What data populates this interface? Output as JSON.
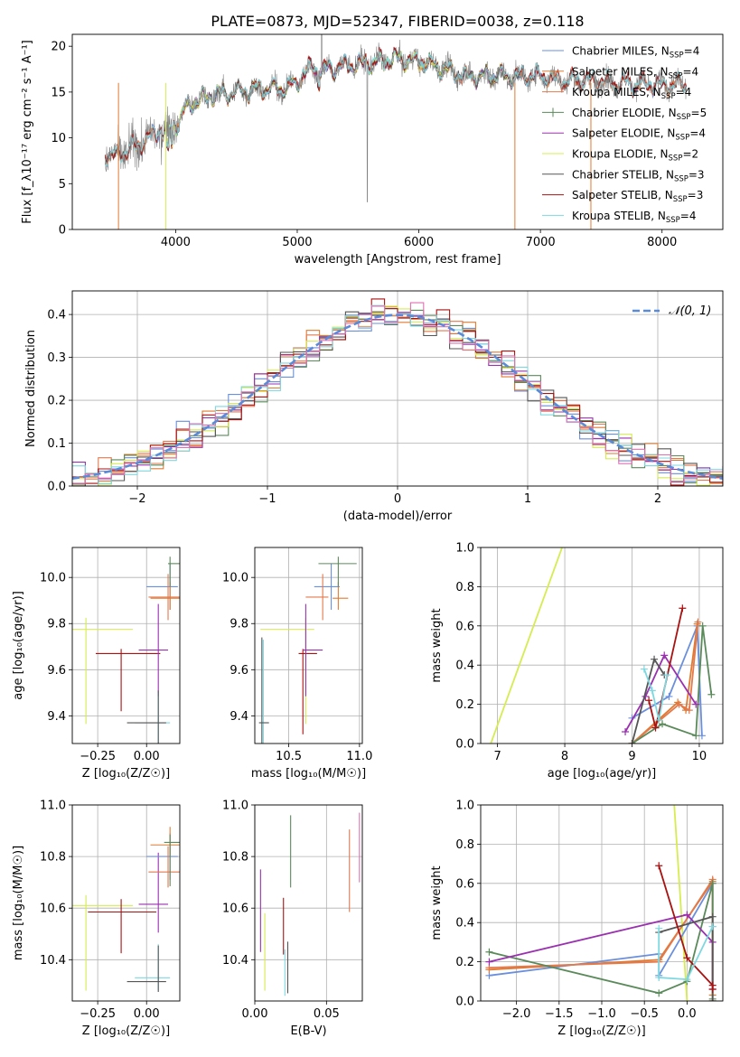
{
  "title": "PLATE=0873, MJD=52347, FIBERID=0038, z=0.118",
  "colors": {
    "chabrier_miles": "#6a8fdc",
    "salpeter_miles": "#e07a30",
    "kroupa_miles": "#e3794c",
    "chabrier_elodie": "#5a8a5a",
    "salpeter_elodie": "#9a30b0",
    "kroupa_elodie": "#d6ec50",
    "chabrier_stelib": "#555555",
    "salpeter_stelib": "#aa1111",
    "kroupa_stelib": "#7fd8e0",
    "pink": "#e070b0",
    "data_gray": "#808080"
  },
  "chart_data": [
    {
      "id": "spectrum",
      "type": "line",
      "xlabel": "wavelength [Angstrom, rest frame]",
      "ylabel": "Flux [f_λ10⁻¹⁷ erg cm⁻² s⁻¹ A⁻¹]",
      "xlim": [
        3150,
        8500
      ],
      "ylim": [
        0,
        21.3
      ],
      "xticks": [
        "4000",
        "5000",
        "6000",
        "7000",
        "8000"
      ],
      "yticks": [
        "0",
        "5",
        "10",
        "15",
        "20"
      ],
      "legend_position": "top-right",
      "legend": [
        "Chabrier MILES, N_SSP=4",
        "Salpeter MILES, N_SSP=4",
        "Kroupa MILES, N_SSP=4",
        "Chabrier ELODIE, N_SSP=5",
        "Salpeter ELODIE, N_SSP=4",
        "Kroupa ELODIE, N_SSP=2",
        "Chabrier STELIB, N_SSP=3",
        "Salpeter STELIB, N_SSP=3",
        "Kroupa STELIB, N_SSP=4"
      ],
      "continuum_wavelength": [
        3420,
        3500,
        3600,
        3700,
        3800,
        3900,
        4000,
        4100,
        4200,
        4300,
        4500,
        4700,
        4900,
        5000,
        5100,
        5200,
        5400,
        5600,
        5800,
        6000,
        6200,
        6400,
        6600,
        6800,
        7000,
        7200,
        7400,
        7600,
        7800,
        8000,
        8200
      ],
      "continuum_flux": [
        8.2,
        7.9,
        8.6,
        9.3,
        10.2,
        10.8,
        11.3,
        13.5,
        14.2,
        14.6,
        15.0,
        15.4,
        15.4,
        16.0,
        17.6,
        17.3,
        17.9,
        18.2,
        18.6,
        18.4,
        17.6,
        16.7,
        16.8,
        16.7,
        16.8,
        16.2,
        16.3,
        16.0,
        15.9,
        15.8,
        15.9
      ]
    },
    {
      "id": "residuals",
      "type": "histogram",
      "xlabel": "(data-model)/error",
      "ylabel": "Normed distribution",
      "xlim": [
        -2.5,
        2.5
      ],
      "ylim": [
        0,
        0.455
      ],
      "xticks": [
        "−2",
        "−1",
        "0",
        "1",
        "2"
      ],
      "yticks": [
        "0.0",
        "0.1",
        "0.2",
        "0.3",
        "0.4"
      ],
      "grid": true,
      "legend": [
        "𝒩(0, 1)"
      ],
      "legend_position": "top-right",
      "bin_width": 0.1
    },
    {
      "id": "age_vs_Z",
      "type": "errorbar",
      "xlabel": "Z [log₁₀(Z/Z☉)]",
      "ylabel": "age  [log₁₀(age/yr)]",
      "xlim": [
        -0.38,
        0.17
      ],
      "ylim": [
        9.28,
        10.13
      ],
      "xticks": [
        "−0.25",
        "0.00"
      ],
      "yticks": [
        "9.4",
        "9.6",
        "9.8",
        "10.0"
      ],
      "grid": true,
      "points": [
        {
          "series": "kroupa_elodie",
          "x": -0.31,
          "y": 9.775,
          "xerr": [
            0.25,
            0.24
          ],
          "yerr": [
            0.41,
            0.05
          ]
        },
        {
          "series": "salpeter_stelib",
          "x": -0.13,
          "y": 9.67,
          "xerr": [
            0.13,
            0.2
          ],
          "yerr": [
            0.25,
            0.02
          ]
        },
        {
          "series": "salpeter_elodie",
          "x": 0.06,
          "y": 9.685,
          "xerr": [
            0.1,
            0.05
          ],
          "yerr": [
            0.2,
            0.2
          ]
        },
        {
          "series": "kroupa_stelib",
          "x": 0.06,
          "y": 9.37,
          "xerr": [
            0.12,
            0.06
          ],
          "yerr": [
            0.1,
            0.13
          ]
        },
        {
          "series": "chabrier_stelib",
          "x": 0.06,
          "y": 9.37,
          "xerr": [
            0.16,
            0.04
          ],
          "yerr": [
            0.09,
            0.14
          ]
        },
        {
          "series": "chabrier_miles",
          "x": 0.12,
          "y": 9.96,
          "xerr": [
            0.12,
            0.04
          ],
          "yerr": [
            0.1,
            0.1
          ]
        },
        {
          "series": "kroupa_miles",
          "x": 0.11,
          "y": 9.915,
          "xerr": [
            0.1,
            0.06
          ],
          "yerr": [
            0.1,
            0.1
          ]
        },
        {
          "series": "salpeter_miles",
          "x": 0.12,
          "y": 9.91,
          "xerr": [
            0.1,
            0.06
          ],
          "yerr": [
            0.05,
            0.07
          ]
        },
        {
          "series": "chabrier_elodie",
          "x": 0.12,
          "y": 10.06,
          "xerr": [
            0.01,
            0.05
          ],
          "yerr": [
            0.1,
            0.03
          ]
        }
      ]
    },
    {
      "id": "age_vs_mass",
      "type": "errorbar",
      "xlabel": "mass [log₁₀(M/M☉)]",
      "ylabel": "",
      "xlim": [
        10.26,
        11.02
      ],
      "ylim": [
        9.28,
        10.13
      ],
      "xticks": [
        "10.5",
        "11.0"
      ],
      "yticks": [
        "9.4",
        "9.6",
        "9.8",
        "10.0"
      ],
      "grid": true,
      "points": [
        {
          "series": "kroupa_elodie",
          "x": 10.62,
          "y": 9.775,
          "xerr": [
            0.32,
            0.06
          ],
          "yerr": [
            0.41,
            0.05
          ]
        },
        {
          "series": "salpeter_stelib",
          "x": 10.6,
          "y": 9.67,
          "xerr": [
            0.03,
            0.1
          ],
          "yerr": [
            0.35,
            0.02
          ]
        },
        {
          "series": "salpeter_elodie",
          "x": 10.62,
          "y": 9.685,
          "xerr": [
            0.02,
            0.12
          ],
          "yerr": [
            0.2,
            0.2
          ]
        },
        {
          "series": "kroupa_stelib",
          "x": 10.32,
          "y": 9.37,
          "xerr": [
            0.03,
            0.04
          ],
          "yerr": [
            0.1,
            0.36
          ]
        },
        {
          "series": "chabrier_stelib",
          "x": 10.31,
          "y": 9.37,
          "xerr": [
            0.02,
            0.05
          ],
          "yerr": [
            0.09,
            0.37
          ]
        },
        {
          "series": "chabrier_miles",
          "x": 10.8,
          "y": 9.96,
          "xerr": [
            0.12,
            0.06
          ],
          "yerr": [
            0.1,
            0.1
          ]
        },
        {
          "series": "kroupa_miles",
          "x": 10.74,
          "y": 9.915,
          "xerr": [
            0.12,
            0.04
          ],
          "yerr": [
            0.1,
            0.1
          ]
        },
        {
          "series": "salpeter_miles",
          "x": 10.85,
          "y": 9.91,
          "xerr": [
            0.04,
            0.07
          ],
          "yerr": [
            0.05,
            0.07
          ]
        },
        {
          "series": "chabrier_elodie",
          "x": 10.85,
          "y": 10.06,
          "xerr": [
            0.14,
            0.13
          ],
          "yerr": [
            0.1,
            0.03
          ]
        }
      ]
    },
    {
      "id": "weight_vs_age",
      "type": "line",
      "xlabel": "age  [log₁₀(age/yr)]",
      "ylabel": "mass weight",
      "xlim": [
        6.75,
        10.35
      ],
      "ylim": [
        0,
        1.0
      ],
      "xticks": [
        "7",
        "8",
        "9",
        "10"
      ],
      "yticks": [
        "0.0",
        "0.2",
        "0.4",
        "0.6",
        "0.8",
        "1.0"
      ],
      "grid": true,
      "series": [
        {
          "name": "Kroupa ELODIE",
          "color": "kroupa_elodie",
          "x": [
            6.9,
            7.96
          ],
          "y": [
            0.0,
            1.0
          ]
        },
        {
          "name": "Chabrier MILES",
          "color": "chabrier_miles",
          "x": [
            9.0,
            9.55,
            9.97,
            10.04
          ],
          "y": [
            0.13,
            0.24,
            0.6,
            0.04
          ]
        },
        {
          "name": "Salpeter MILES",
          "color": "salpeter_miles",
          "x": [
            9.0,
            9.68,
            9.8,
            9.97
          ],
          "y": [
            0.0,
            0.21,
            0.17,
            0.61
          ]
        },
        {
          "name": "Kroupa MILES",
          "color": "kroupa_miles",
          "x": [
            9.0,
            9.7,
            9.85,
            9.98
          ],
          "y": [
            0.0,
            0.2,
            0.17,
            0.62
          ]
        },
        {
          "name": "Chabrier ELODIE",
          "color": "chabrier_elodie",
          "x": [
            9.0,
            9.45,
            9.95,
            10.05,
            10.18
          ],
          "y": [
            0.0,
            0.1,
            0.04,
            0.6,
            0.25
          ]
        },
        {
          "name": "Salpeter ELODIE",
          "color": "salpeter_elodie",
          "x": [
            8.9,
            9.2,
            9.48,
            9.95
          ],
          "y": [
            0.06,
            0.24,
            0.45,
            0.2
          ]
        },
        {
          "name": "Chabrier STELIB",
          "color": "chabrier_stelib",
          "x": [
            9.0,
            9.33,
            9.48
          ],
          "y": [
            0.0,
            0.43,
            0.35
          ]
        },
        {
          "name": "Salpeter STELIB",
          "color": "salpeter_stelib",
          "x": [
            9.25,
            9.35,
            9.75
          ],
          "y": [
            0.22,
            0.08,
            0.69
          ]
        },
        {
          "name": "Kroupa STELIB",
          "color": "kroupa_stelib",
          "x": [
            9.18,
            9.3,
            9.4,
            9.52
          ],
          "y": [
            0.38,
            0.27,
            0.12,
            0.35
          ]
        }
      ]
    },
    {
      "id": "mass_vs_Z",
      "type": "errorbar",
      "xlabel": "Z [log₁₀(Z/Z☉)]",
      "ylabel": "mass [log₁₀(M/M☉)]",
      "xlim": [
        -0.38,
        0.17
      ],
      "ylim": [
        10.24,
        11.0
      ],
      "xticks": [
        "−0.25",
        "0.00"
      ],
      "yticks": [
        "10.4",
        "10.6",
        "10.8",
        "11.0"
      ],
      "grid": true,
      "points": [
        {
          "series": "kroupa_elodie",
          "x": -0.31,
          "y": 10.61,
          "xerr": [
            0.25,
            0.24
          ],
          "yerr": [
            0.33,
            0.04
          ]
        },
        {
          "series": "salpeter_stelib",
          "x": -0.13,
          "y": 10.585,
          "xerr": [
            0.17,
            0.18
          ],
          "yerr": [
            0.16,
            0.05
          ]
        },
        {
          "series": "salpeter_elodie",
          "x": 0.06,
          "y": 10.615,
          "xerr": [
            0.1,
            0.05
          ],
          "yerr": [
            0.11,
            0.2
          ]
        },
        {
          "series": "kroupa_stelib",
          "x": 0.06,
          "y": 10.33,
          "xerr": [
            0.12,
            0.06
          ],
          "yerr": [
            0.05,
            0.13
          ]
        },
        {
          "series": "chabrier_stelib",
          "x": 0.06,
          "y": 10.315,
          "xerr": [
            0.16,
            0.04
          ],
          "yerr": [
            0.04,
            0.14
          ]
        },
        {
          "series": "chabrier_miles",
          "x": 0.12,
          "y": 10.8,
          "xerr": [
            0.12,
            0.04
          ],
          "yerr": [
            0.09,
            0.09
          ]
        },
        {
          "series": "kroupa_miles",
          "x": 0.11,
          "y": 10.74,
          "xerr": [
            0.1,
            0.06
          ],
          "yerr": [
            0.06,
            0.1
          ]
        },
        {
          "series": "salpeter_miles",
          "x": 0.12,
          "y": 10.845,
          "xerr": [
            0.1,
            0.06
          ],
          "yerr": [
            0.04,
            0.07
          ]
        },
        {
          "series": "chabrier_elodie",
          "x": 0.12,
          "y": 10.855,
          "xerr": [
            0.03,
            0.05
          ],
          "yerr": [
            0.17,
            0.03
          ]
        }
      ]
    },
    {
      "id": "mass_vs_ebv",
      "type": "errorbar",
      "xlabel": "E(B-V)",
      "ylabel": "",
      "xlim": [
        0.0,
        0.075
      ],
      "ylim": [
        10.24,
        11.0
      ],
      "xticks": [
        "0.00",
        "0.05"
      ],
      "yticks": [
        "10.4",
        "10.6",
        "10.8",
        "11.0"
      ],
      "grid": true,
      "points": [
        {
          "series": "salpeter_elodie",
          "x": 0.004,
          "y": 10.6,
          "yerr": [
            0.17,
            0.15
          ]
        },
        {
          "series": "kroupa_elodie",
          "x": 0.007,
          "y": 10.45,
          "yerr": [
            0.17,
            0.13
          ]
        },
        {
          "series": "salpeter_stelib",
          "x": 0.02,
          "y": 10.52,
          "yerr": [
            0.1,
            0.12
          ]
        },
        {
          "series": "kroupa_stelib",
          "x": 0.021,
          "y": 10.37,
          "yerr": [
            0.11,
            0.07
          ]
        },
        {
          "series": "chabrier_stelib",
          "x": 0.023,
          "y": 10.37,
          "yerr": [
            0.1,
            0.1
          ]
        },
        {
          "series": "chabrier_elodie",
          "x": 0.025,
          "y": 10.82,
          "yerr": [
            0.14,
            0.14
          ]
        },
        {
          "series": "kroupa_miles",
          "x": 0.066,
          "y": 10.745,
          "yerr": [
            0.16,
            0.16
          ]
        },
        {
          "series": "pink",
          "x": 0.073,
          "y": 10.83,
          "yerr": [
            0.13,
            0.14
          ]
        }
      ]
    },
    {
      "id": "weight_vs_Z",
      "type": "line",
      "xlabel": "Z [log₁₀(Z/Z☉)]",
      "ylabel": "mass weight",
      "xlim": [
        -2.42,
        0.42
      ],
      "ylim": [
        0,
        1.0
      ],
      "xticks": [
        "−2.0",
        "−1.5",
        "−1.0",
        "−0.5",
        "0.0"
      ],
      "yticks": [
        "0.0",
        "0.2",
        "0.4",
        "0.6",
        "0.8",
        "1.0"
      ],
      "grid": true,
      "series": [
        {
          "name": "Kroupa ELODIE",
          "color": "kroupa_elodie",
          "x": [
            -0.15,
            0.0
          ],
          "y": [
            1.0,
            0.0
          ]
        },
        {
          "name": "Chabrier MILES",
          "color": "chabrier_miles",
          "x": [
            -2.32,
            -0.33,
            -0.33,
            0.3,
            0.3
          ],
          "y": [
            0.13,
            0.24,
            0.13,
            0.6,
            0.38
          ]
        },
        {
          "name": "Salpeter MILES",
          "color": "salpeter_miles",
          "x": [
            -2.32,
            -0.33,
            0.3,
            0.3
          ],
          "y": [
            0.16,
            0.21,
            0.61,
            0.03
          ]
        },
        {
          "name": "Kroupa MILES",
          "color": "kroupa_miles",
          "x": [
            -2.32,
            -0.33,
            0.3,
            0.3
          ],
          "y": [
            0.17,
            0.2,
            0.62,
            0.0
          ]
        },
        {
          "name": "Chabrier ELODIE",
          "color": "chabrier_elodie",
          "x": [
            -2.32,
            -0.33,
            0.0,
            0.3,
            0.3
          ],
          "y": [
            0.25,
            0.04,
            0.1,
            0.6,
            0.01
          ]
        },
        {
          "name": "Salpeter ELODIE",
          "color": "salpeter_elodie",
          "x": [
            -2.32,
            0.0,
            0.3,
            0.3
          ],
          "y": [
            0.2,
            0.44,
            0.3,
            0.06
          ]
        },
        {
          "name": "Chabrier STELIB",
          "color": "chabrier_stelib",
          "x": [
            -0.33,
            0.3,
            0.3
          ],
          "y": [
            0.35,
            0.43,
            0.0
          ]
        },
        {
          "name": "Salpeter STELIB",
          "color": "salpeter_stelib",
          "x": [
            -0.33,
            0.0,
            0.3,
            0.3
          ],
          "y": [
            0.69,
            0.22,
            0.08,
            0.06
          ]
        },
        {
          "name": "Kroupa STELIB",
          "color": "kroupa_stelib",
          "x": [
            -0.33,
            -0.33,
            0.0,
            0.3
          ],
          "y": [
            0.37,
            0.12,
            0.11,
            0.38
          ]
        }
      ]
    }
  ]
}
